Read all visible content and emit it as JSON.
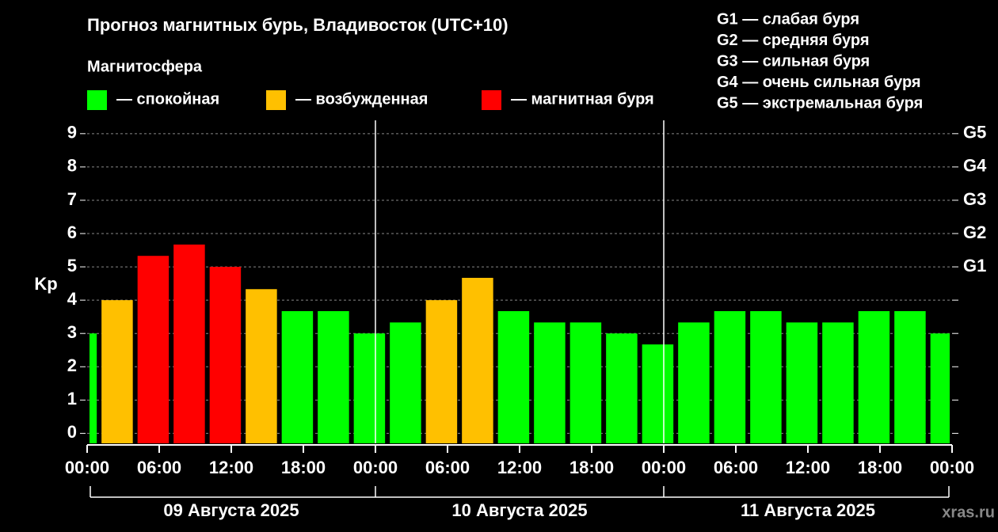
{
  "chart_data": {
    "type": "bar",
    "title": "Прогноз магнитных бурь, Владивосток (UTC+10)",
    "legend_title": "Магнитосфера",
    "legend": [
      {
        "label": "— спокойная",
        "color": "#00ff00"
      },
      {
        "label": "— возбужденная",
        "color": "#ffc000"
      },
      {
        "label": "— магнитная буря",
        "color": "#ff0000"
      }
    ],
    "g_scale": [
      "G1 — слабая буря",
      "G2 — средняя буря",
      "G3 — сильная буря",
      "G4 — очень сильная буря",
      "G5 — экстремальная буря"
    ],
    "y_label": "Kp",
    "x": [
      -2,
      1,
      4,
      7,
      10,
      13,
      16,
      19,
      22,
      25,
      28,
      31,
      34,
      37,
      40,
      43,
      46,
      49,
      52,
      55,
      58,
      61,
      64,
      67,
      70
    ],
    "values": [
      3.0,
      4.0,
      5.33,
      5.67,
      5.0,
      4.33,
      3.67,
      3.67,
      3.0,
      3.33,
      4.0,
      4.67,
      3.67,
      3.33,
      3.33,
      3.0,
      2.67,
      3.33,
      3.67,
      3.67,
      3.33,
      3.33,
      3.67,
      3.67,
      3.0
    ],
    "colors": [
      "#00ff00",
      "#ffc000",
      "#ff0000",
      "#ff0000",
      "#ff0000",
      "#ffc000",
      "#00ff00",
      "#00ff00",
      "#00ff00",
      "#00ff00",
      "#ffc000",
      "#ffc000",
      "#00ff00",
      "#00ff00",
      "#00ff00",
      "#00ff00",
      "#00ff00",
      "#00ff00",
      "#00ff00",
      "#00ff00",
      "#00ff00",
      "#00ff00",
      "#00ff00",
      "#00ff00",
      "#00ff00"
    ],
    "bar_span": 3,
    "xlim": [
      0,
      72
    ],
    "xticks": [
      {
        "value": 0,
        "label": "00:00"
      },
      {
        "value": 6,
        "label": "06:00"
      },
      {
        "value": 12,
        "label": "12:00"
      },
      {
        "value": 18,
        "label": "18:00"
      },
      {
        "value": 24,
        "label": "00:00"
      },
      {
        "value": 30,
        "label": "06:00"
      },
      {
        "value": 36,
        "label": "12:00"
      },
      {
        "value": 42,
        "label": "18:00"
      },
      {
        "value": 48,
        "label": "00:00"
      },
      {
        "value": 54,
        "label": "06:00"
      },
      {
        "value": 60,
        "label": "12:00"
      },
      {
        "value": 66,
        "label": "18:00"
      },
      {
        "value": 72,
        "label": "00:00"
      }
    ],
    "days": [
      "09 Августа 2025",
      "10 Августа 2025",
      "11 Августа 2025"
    ],
    "ylim": [
      -0.3,
      9.4
    ],
    "yticks": [
      0,
      1,
      2,
      3,
      4,
      5,
      6,
      7,
      8,
      9
    ],
    "y2ticks": [
      {
        "value": 5,
        "label": "G1"
      },
      {
        "value": 6,
        "label": "G2"
      },
      {
        "value": 7,
        "label": "G3"
      },
      {
        "value": 8,
        "label": "G4"
      },
      {
        "value": 9,
        "label": "G5"
      }
    ],
    "grid": true,
    "watermark": "xras.ru"
  }
}
